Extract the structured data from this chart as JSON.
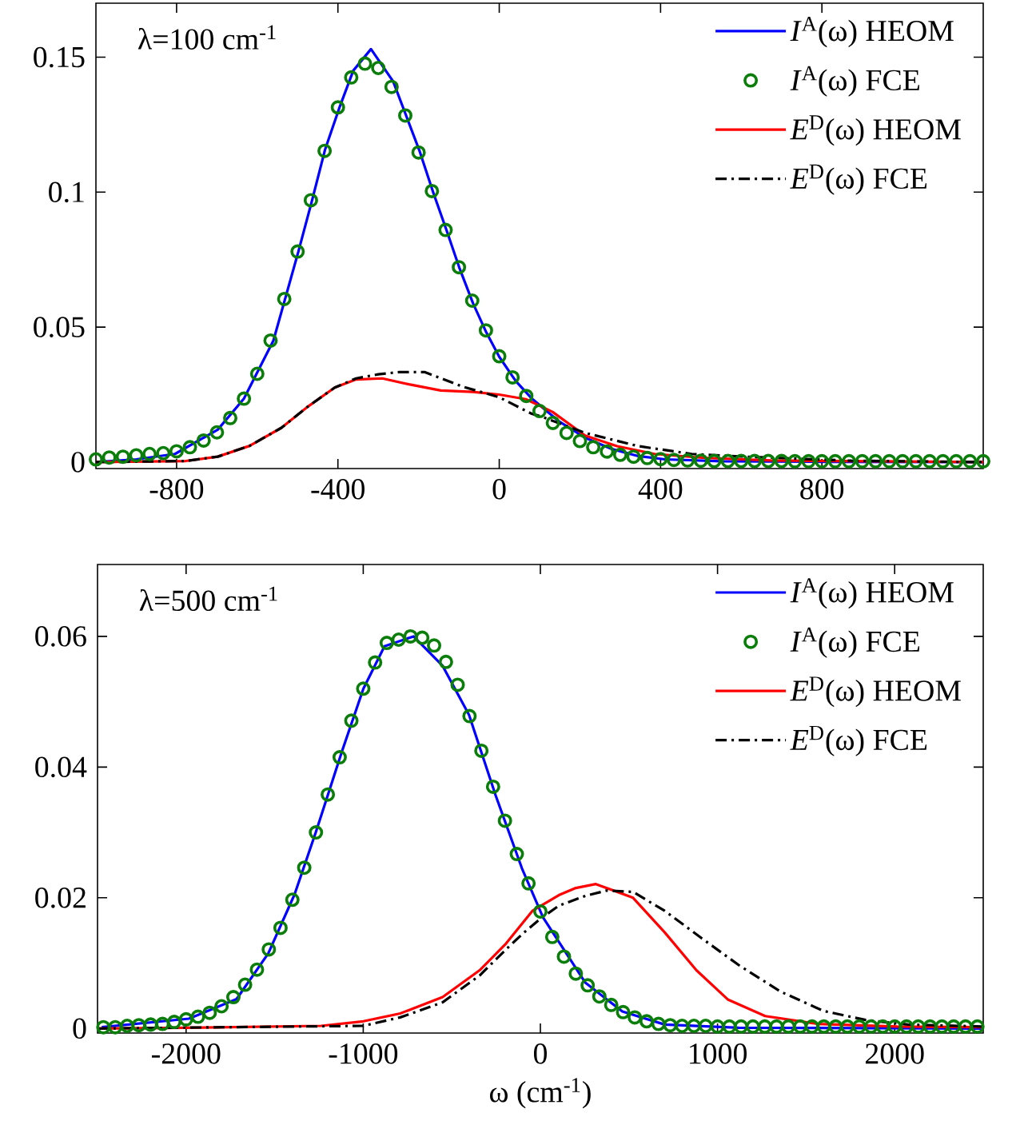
{
  "chart_data": [
    {
      "type": "line",
      "xlim": [
        -1000,
        1200
      ],
      "ylim": [
        -0.0024,
        0.17
      ],
      "xticks": [
        -800,
        -400,
        0,
        400,
        800
      ],
      "yticks": [
        0,
        0.05,
        0.1,
        0.15
      ],
      "legend": "top right",
      "grid": false,
      "annotations": [
        "λ=100 cm$^{-1}$"
      ],
      "series": [
        {
          "name": "*I*$^{A}$(ω) HEOM",
          "type": "line",
          "color": "#0000ff",
          "line_style": "solid",
          "x": [
            -1000,
            -900,
            -804,
            -698,
            -633,
            -560,
            -498,
            -464,
            -432,
            -397,
            -362,
            -318,
            -263,
            -230,
            -197,
            -164,
            -131,
            -98,
            -65,
            -32,
            0,
            41,
            81,
            147,
            213,
            278,
            345,
            411,
            550,
            800,
            1200
          ],
          "values": [
            0,
            0.001,
            0.003,
            0.012,
            0.0235,
            0.045,
            0.078,
            0.097,
            0.1157,
            0.131,
            0.145,
            0.153,
            0.141,
            0.128,
            0.115,
            0.1,
            0.086,
            0.0716,
            0.0588,
            0.048,
            0.039,
            0.03,
            0.0235,
            0.0152,
            0.009,
            0.0049,
            0.0022,
            0.001,
            0.0003,
            0.0001,
            0
          ]
        },
        {
          "name": "*I*$^{A}$(ω) FCE",
          "type": "scatter",
          "marker": "circle",
          "color": "#0a7d0a",
          "x": [
            -1000,
            -967,
            -933,
            -900,
            -867,
            -833,
            -800,
            -767,
            -733,
            -700,
            -667,
            -633,
            -600,
            -567,
            -533,
            -500,
            -467,
            -433,
            -400,
            -367,
            -333,
            -300,
            -267,
            -233,
            -200,
            -167,
            -133,
            -100,
            -67,
            -33,
            0,
            33,
            67,
            100,
            133,
            167,
            200,
            233,
            267,
            300,
            333,
            367,
            400,
            433,
            467,
            500,
            533,
            567,
            600,
            633,
            667,
            700,
            733,
            767,
            800,
            833,
            867,
            900,
            933,
            967,
            1000,
            1033,
            1067,
            1100,
            1133,
            1167,
            1200
          ],
          "values": [
            0.001,
            0.0017,
            0.002,
            0.0025,
            0.003,
            0.0033,
            0.004,
            0.0055,
            0.008,
            0.011,
            0.0163,
            0.0235,
            0.0327,
            0.045,
            0.0604,
            0.078,
            0.097,
            0.1153,
            0.1314,
            0.1425,
            0.1476,
            0.146,
            0.139,
            0.1284,
            0.1147,
            0.1004,
            0.086,
            0.0722,
            0.0598,
            0.0488,
            0.0392,
            0.0314,
            0.0245,
            0.0189,
            0.0145,
            0.0108,
            0.0078,
            0.0055,
            0.0039,
            0.0027,
            0.002,
            0.0015,
            0.0011,
            0.0008,
            0.0006,
            0.0005,
            0.0004,
            0.0004,
            0.0004,
            0.0004,
            0.0004,
            0.0004,
            0.0003,
            0.0003,
            0.0003,
            0.0003,
            0.0003,
            0.0003,
            0.0003,
            0.0003,
            0.0003,
            0.0003,
            0.0003,
            0.0003,
            0.0003,
            0.0003,
            0.0003
          ]
        },
        {
          "name": "*E*$^{D}$(ω) HEOM",
          "type": "line",
          "color": "#ff0000",
          "line_style": "solid",
          "x": [
            -1000,
            -777,
            -698,
            -619,
            -540,
            -474,
            -408,
            -355,
            -290,
            -224,
            -145,
            -66,
            0,
            66,
            132,
            213,
            292,
            385,
            503,
            674,
            1000,
            1200
          ],
          "values": [
            0,
            0.0004,
            0.002,
            0.006,
            0.0127,
            0.0206,
            0.0276,
            0.0306,
            0.031,
            0.0288,
            0.0265,
            0.026,
            0.025,
            0.0233,
            0.0186,
            0.0098,
            0.0059,
            0.003,
            0.0016,
            0.0006,
            0.0002,
            0
          ]
        },
        {
          "name": "*E*$^{D}$(ω) FCE",
          "type": "line",
          "color": "#000000",
          "line_style": "dashdot",
          "x": [
            -1000,
            -777,
            -698,
            -619,
            -540,
            -474,
            -408,
            -355,
            -300,
            -250,
            -184,
            -92,
            0,
            79,
            107,
            213,
            345,
            477,
            609,
            873,
            1200
          ],
          "values": [
            0,
            0.0004,
            0.002,
            0.006,
            0.0127,
            0.0206,
            0.0276,
            0.031,
            0.0325,
            0.0333,
            0.0333,
            0.028,
            0.024,
            0.018,
            0.0167,
            0.0108,
            0.0059,
            0.003,
            0.002,
            0.0005,
            0
          ]
        }
      ]
    },
    {
      "type": "line",
      "xlim": [
        -2500,
        2500
      ],
      "ylim": [
        -0.0007,
        0.071
      ],
      "xticks": [
        -2000,
        -1000,
        0,
        1000,
        2000
      ],
      "yticks": [
        0,
        0.02,
        0.04,
        0.06
      ],
      "legend": "top right",
      "grid": false,
      "xlabel": "ω (cm$^{-1}$)",
      "annotations": [
        "λ=500 cm$^{-1}$"
      ],
      "series": [
        {
          "name": "*I*$^{A}$(ω) HEOM",
          "type": "line",
          "color": "#0000ff",
          "line_style": "solid",
          "x": [
            -2476,
            -1984,
            -1715,
            -1536,
            -1388,
            -1268,
            -1119,
            -999,
            -880,
            -716,
            -552,
            -403,
            -253,
            -104,
            15,
            254,
            463,
            702,
            1120,
            2500
          ],
          "values": [
            0.0002,
            0.0015,
            0.0045,
            0.0115,
            0.0205,
            0.03,
            0.0425,
            0.052,
            0.0585,
            0.06,
            0.0555,
            0.048,
            0.0357,
            0.0245,
            0.017,
            0.007,
            0.0026,
            0.0006,
            0.0001,
            0
          ]
        },
        {
          "name": "*I*$^{A}$(ω) FCE",
          "type": "scatter",
          "marker": "circle",
          "color": "#0a7d0a",
          "x": [
            -2467,
            -2400,
            -2333,
            -2267,
            -2200,
            -2133,
            -2067,
            -2000,
            -1933,
            -1867,
            -1800,
            -1733,
            -1667,
            -1600,
            -1533,
            -1467,
            -1400,
            -1333,
            -1267,
            -1200,
            -1133,
            -1067,
            -1000,
            -933,
            -867,
            -800,
            -733,
            -667,
            -600,
            -533,
            -467,
            -400,
            -333,
            -267,
            -200,
            -133,
            -67,
            0,
            67,
            133,
            200,
            267,
            333,
            400,
            467,
            533,
            600,
            667,
            733,
            800,
            867,
            933,
            1000,
            1067,
            1133,
            1200,
            1267,
            1333,
            1400,
            1467,
            1533,
            1600,
            1667,
            1733,
            1800,
            1867,
            1933,
            2000,
            2067,
            2133,
            2200,
            2267,
            2333,
            2400,
            2467
          ],
          "values": [
            0.0002,
            0.0002,
            0.0004,
            0.0005,
            0.0006,
            0.0007,
            0.001,
            0.0014,
            0.0018,
            0.0024,
            0.0034,
            0.0048,
            0.0067,
            0.009,
            0.0121,
            0.0154,
            0.0197,
            0.0246,
            0.03,
            0.0358,
            0.0415,
            0.0471,
            0.052,
            0.056,
            0.059,
            0.0595,
            0.06,
            0.0598,
            0.0586,
            0.0561,
            0.0526,
            0.0478,
            0.0425,
            0.037,
            0.0318,
            0.0267,
            0.0222,
            0.0179,
            0.014,
            0.011,
            0.0084,
            0.0066,
            0.0049,
            0.0036,
            0.0025,
            0.0017,
            0.0011,
            0.0007,
            0.0005,
            0.0004,
            0.0004,
            0.0004,
            0.0003,
            0.0003,
            0.0003,
            0.0003,
            0.0003,
            0.0003,
            0.0003,
            0.0003,
            0.0003,
            0.0003,
            0.0003,
            0.0003,
            0.0003,
            0.0003,
            0.0003,
            0.0003,
            0.0003,
            0.0003,
            0.0003,
            0.0003,
            0.0003,
            0.0003,
            0.0003
          ]
        },
        {
          "name": "*E*$^{D}$(ω) HEOM",
          "type": "line",
          "color": "#ff0000",
          "line_style": "solid",
          "x": [
            -2500,
            -2000,
            -1238,
            -999,
            -791,
            -552,
            -343,
            -194,
            -45,
            104,
            200,
            313,
            523,
            702,
            881,
            1060,
            1269,
            1567,
            2015,
            2500
          ],
          "values": [
            0,
            0.0001,
            0.0004,
            0.0011,
            0.0023,
            0.0048,
            0.0089,
            0.013,
            0.018,
            0.0204,
            0.0215,
            0.0221,
            0.02,
            0.0147,
            0.0089,
            0.0044,
            0.0019,
            0.0007,
            0.0003,
            0.0002
          ]
        },
        {
          "name": "*E*$^{D}$(ω) FCE",
          "type": "line",
          "color": "#000000",
          "line_style": "dashdot",
          "x": [
            -2500,
            -1000,
            -791,
            -552,
            -343,
            -194,
            -100,
            0,
            105,
            254,
            373,
            523,
            702,
            911,
            1120,
            1359,
            1597,
            1836,
            2075,
            2500
          ],
          "values": [
            0,
            0.0004,
            0.0017,
            0.004,
            0.0081,
            0.0121,
            0.0145,
            0.0168,
            0.0188,
            0.0203,
            0.0211,
            0.0209,
            0.018,
            0.0138,
            0.0097,
            0.0056,
            0.0027,
            0.0013,
            0.0006,
            0.0003
          ]
        }
      ]
    }
  ]
}
